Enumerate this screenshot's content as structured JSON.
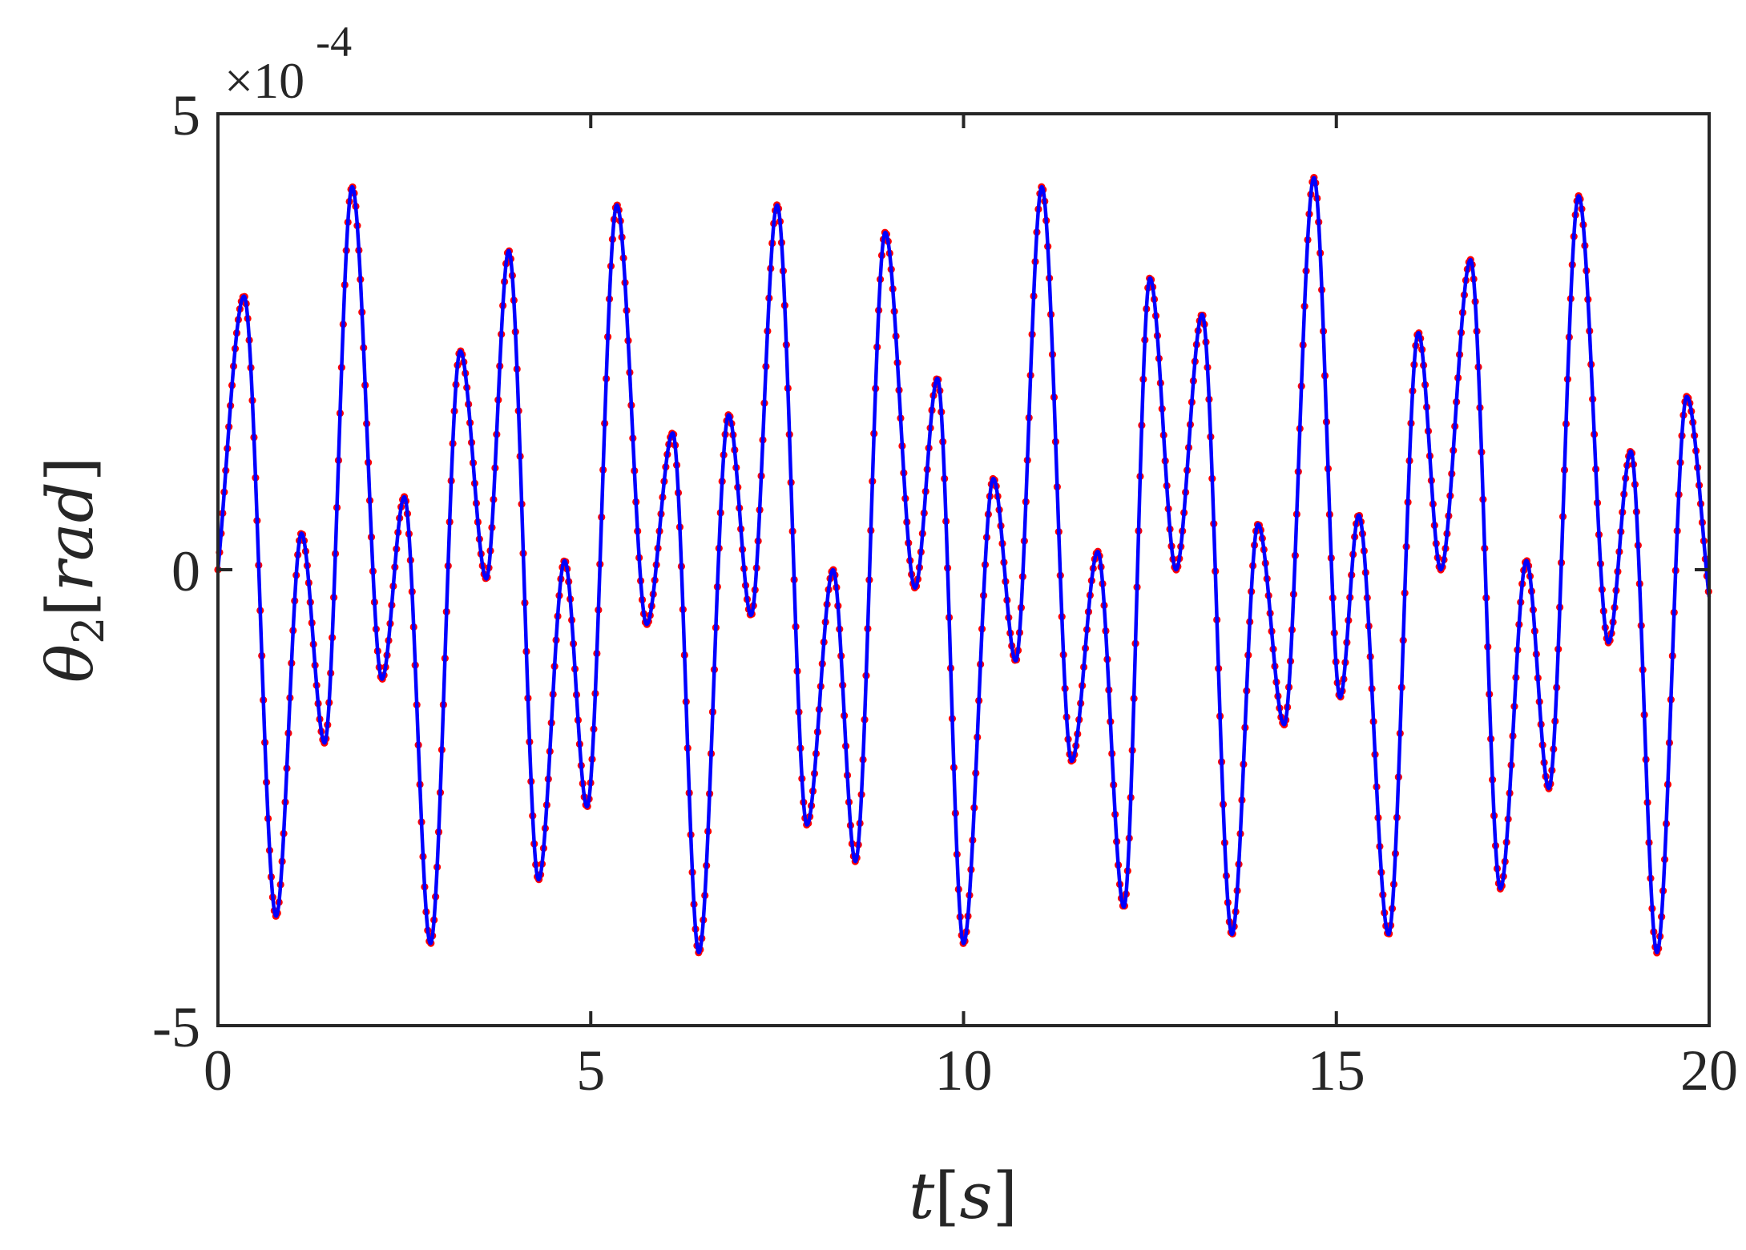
{
  "chart_data": {
    "type": "line",
    "xlabel": {
      "main": "t",
      "open": "[",
      "unit": "s",
      "close": "]"
    },
    "ylabel": {
      "sym": "θ",
      "sub": "2",
      "open": "[",
      "unit": "rad",
      "close": "]"
    },
    "y_multiplier": {
      "times": "×",
      "base": "10",
      "exponent": "-4"
    },
    "xlim": [
      0,
      20
    ],
    "ylim": [
      -5,
      5
    ],
    "x_ticks": [
      "0",
      "5",
      "10",
      "15",
      "20"
    ],
    "y_ticks": [
      "-5",
      "0",
      "5"
    ],
    "grid": false,
    "legend": "none",
    "series": [
      {
        "style": "solid-line",
        "color": "#0000ff",
        "x": [
          0,
          0.35,
          0.78,
          1.12,
          1.43,
          1.8,
          2.2,
          2.5,
          2.85,
          3.25,
          3.6,
          3.9,
          4.3,
          4.65,
          4.95,
          5.35,
          5.75,
          6.1,
          6.45,
          6.85,
          7.15,
          7.5,
          7.9,
          8.25,
          8.55,
          8.95,
          9.35,
          9.65,
          10.0,
          10.4,
          10.7,
          11.05,
          11.45,
          11.8,
          12.15,
          12.5,
          12.85,
          13.2,
          13.6,
          13.95,
          14.3,
          14.7,
          15.05,
          15.3,
          15.7,
          16.1,
          16.4,
          16.8,
          17.2,
          17.55,
          17.85,
          18.25,
          18.65,
          18.95,
          19.3,
          19.7,
          20.0
        ],
        "y": [
          0,
          3.0,
          -3.8,
          0.4,
          -1.9,
          4.2,
          -1.2,
          0.8,
          -4.1,
          2.4,
          -0.1,
          3.5,
          -3.4,
          0.1,
          -2.6,
          4.0,
          -0.6,
          1.5,
          -4.2,
          1.7,
          -0.5,
          4.0,
          -2.8,
          0.0,
          -3.2,
          3.7,
          -0.2,
          2.1,
          -4.1,
          1.0,
          -1.0,
          4.2,
          -2.1,
          0.2,
          -3.7,
          3.2,
          0.0,
          2.8,
          -4.0,
          0.5,
          -1.7,
          4.3,
          -1.4,
          0.6,
          -4.0,
          2.6,
          0.0,
          3.4,
          -3.5,
          0.1,
          -2.4,
          4.1,
          -0.8,
          1.3,
          -4.2,
          1.9,
          -0.3
        ]
      },
      {
        "style": "dotted-markers",
        "color": "#ff0000",
        "same_as": "previous"
      }
    ]
  }
}
